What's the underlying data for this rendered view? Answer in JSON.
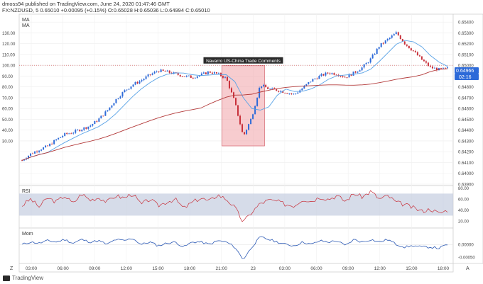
{
  "header": {
    "line1": "dmoss94 published on TradingView.com, June 24, 2020 01:47:46 GMT",
    "line2": "FX:NZDUSD, 5 0.65010 +0.00095 (+0.15%) O:0.65028 H:0.65036 L:0.64994 C:0.65010"
  },
  "footer": {
    "brand": "TradingView"
  },
  "colors": {
    "candle_up": "#2d6ad8",
    "candle_down": "#c8303a",
    "ma_fast": "#5aa3e6",
    "ma_slow": "#b33a3a",
    "rsi": "#c8303a",
    "rsi_band": "#c5cde0",
    "mom": "#2a58b4",
    "annotation_fill": "#f1a3a8",
    "annotation_border": "#d4606a",
    "price_badge": "#2d6ad8"
  },
  "chart_data": [
    {
      "type": "line",
      "panel": "price",
      "legend": [
        "MA",
        "MA"
      ],
      "left_axis_ticks": [
        "130.00",
        "120.00",
        "110.00",
        "100.00",
        "90.00",
        "80.00",
        "70.00",
        "60.00",
        "50.00",
        "40.00",
        "30.00"
      ],
      "right_axis_ticks": [
        "0.65400",
        "0.65300",
        "0.65200",
        "0.65100",
        "0.65000",
        "0.64900",
        "0.64800",
        "0.64700",
        "0.64600",
        "0.64500",
        "0.64400",
        "0.64300",
        "0.64200",
        "0.64100",
        "0.64000",
        "0.63900"
      ],
      "ylim": [
        0.639,
        0.6546
      ],
      "current_price": "0.64966",
      "countdown": "02:16",
      "annotation": "Navarro US-China Trade Comments",
      "series": [
        {
          "values": [
            0.6412,
            0.6418,
            0.6422,
            0.6425,
            0.6431,
            0.6436,
            0.6438,
            0.6441,
            0.6444,
            0.645,
            0.6458,
            0.6468,
            0.6476,
            0.6482,
            0.6486,
            0.6491,
            0.6495,
            0.6494,
            0.6492,
            0.649,
            0.6489,
            0.6491,
            0.6494,
            0.6492,
            0.6488,
            0.6466,
            0.6434,
            0.6452,
            0.6482,
            0.6478,
            0.6477,
            0.6475,
            0.6473,
            0.6479,
            0.6486,
            0.649,
            0.6493,
            0.6492,
            0.6489,
            0.6493,
            0.6498,
            0.6506,
            0.6518,
            0.6524,
            0.653,
            0.652,
            0.6513,
            0.6505,
            0.6498,
            0.6496,
            0.6497
          ]
        }
      ]
    },
    {
      "type": "line",
      "panel": "rsi",
      "legend": [
        "RSI"
      ],
      "right_axis_ticks": [
        "80.00",
        "60.00",
        "40.00",
        "20.00"
      ],
      "band": [
        30,
        70
      ],
      "ylim": [
        10,
        82
      ],
      "series": [
        {
          "values": [
            48,
            60,
            46,
            62,
            55,
            66,
            52,
            70,
            58,
            63,
            55,
            66,
            62,
            70,
            50,
            60,
            48,
            55,
            60,
            43,
            54,
            62,
            56,
            68,
            60,
            45,
            18,
            36,
            52,
            58,
            56,
            50,
            48,
            60,
            56,
            64,
            60,
            66,
            56,
            70,
            64,
            74,
            60,
            66,
            54,
            50,
            44,
            38,
            42,
            34,
            40
          ]
        }
      ]
    },
    {
      "type": "line",
      "panel": "mom",
      "legend": [
        "Mom"
      ],
      "right_axis_ticks": [
        "0.00000",
        "-0.00050"
      ],
      "ylim": [
        -0.0007,
        0.0006
      ],
      "series": [
        {
          "values": [
            0.0,
            0.0001,
            5e-05,
            0.00015,
            0.0001,
            0.0002,
            5e-05,
            0.0002,
            0.0001,
            0.00015,
            0.0,
            0.0002,
            0.00015,
            0.00025,
            0.0,
            0.0001,
            -5e-05,
            5e-05,
            0.0001,
            -0.0001,
            0.0001,
            0.0001,
            0.0,
            0.00015,
            0.0001,
            -0.0001,
            -0.0006,
            -0.0001,
            0.0003,
            0.0002,
            0.0001,
            0.0,
            -5e-05,
            0.0001,
            0.0,
            0.00015,
            0.0001,
            0.00015,
            -5e-05,
            0.0002,
            0.0001,
            0.0002,
            0.0001,
            0.0002,
            0.0,
            -0.0001,
            -5e-05,
            -0.0001,
            -0.0001,
            -0.00015,
            0.0
          ]
        }
      ]
    },
    {
      "type": "table",
      "panel": "time-axis",
      "x_ticks": [
        "03:00",
        "06:00",
        "09:00",
        "12:00",
        "15:00",
        "18:00",
        "21:00",
        "23",
        "03:00",
        "06:00",
        "09:00",
        "12:00",
        "15:00",
        "18:00"
      ],
      "corner_left": "Z",
      "corner_right": "A"
    }
  ]
}
